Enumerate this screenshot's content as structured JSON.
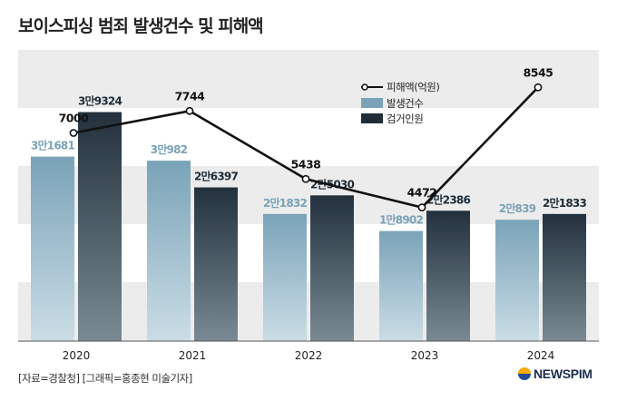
{
  "title": "보이스피싱 범죄 발생건수 및 피해액",
  "source": "[자료=경찰청] [그래픽=홍종현 미술기자]",
  "logo_text": "NEWSPIM",
  "colors": {
    "band": "#ececec",
    "bar_occurrence_top": "#7aa3b8",
    "bar_occurrence_bottom": "#cbdde6",
    "bar_arrests_top": "#22313d",
    "bar_arrests_bottom": "#7a8a94",
    "label_occurrence": "#7ba2b7",
    "label_arrests": "#1f2d38",
    "line": "#111111"
  },
  "chart_data": {
    "type": "bar",
    "categories": [
      "2020",
      "2021",
      "2022",
      "2023",
      "2024"
    ],
    "series": [
      {
        "name": "발생건수",
        "values": [
          31681,
          30982,
          21832,
          18902,
          20839
        ],
        "labels": [
          "3만1681",
          "3만982",
          "2만1832",
          "1만8902",
          "2만839"
        ]
      },
      {
        "name": "검거인원",
        "values": [
          39324,
          26397,
          25030,
          22386,
          21833
        ],
        "labels": [
          "3만9324",
          "2만6397",
          "2만5030",
          "2만2386",
          "2만1833"
        ]
      }
    ],
    "line_series": {
      "name": "피해액(억원)",
      "type": "line",
      "values": [
        7000,
        7744,
        5438,
        4472,
        8545
      ],
      "labels": [
        "7000",
        "7744",
        "5438",
        "4472",
        "8545"
      ]
    },
    "legend": [
      "피해액(억원)",
      "발생건수",
      "검거인원"
    ],
    "legend_position": "top-right",
    "ylim": [
      0,
      50000
    ],
    "xlabel": "",
    "ylabel": ""
  }
}
